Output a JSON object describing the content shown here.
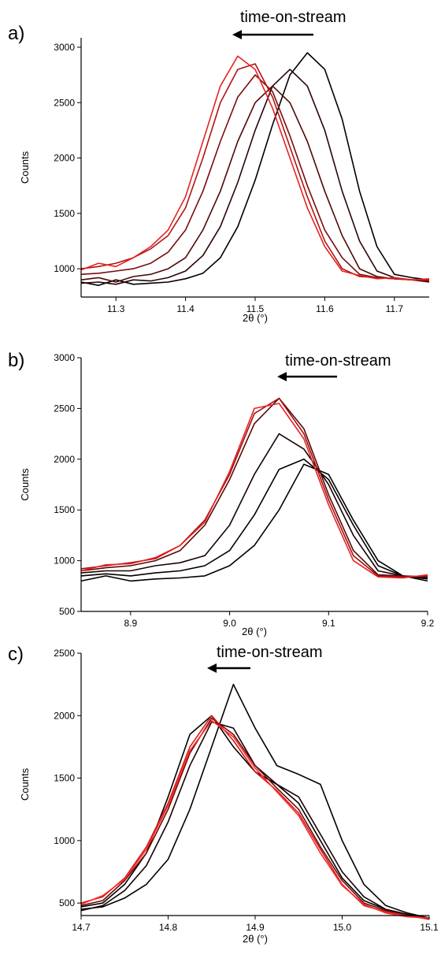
{
  "chart_data": [
    {
      "type": "line",
      "panel": "a)",
      "annotation": "time-on-stream",
      "xlabel": "2θ (°)",
      "ylabel": "Counts",
      "x": [
        11.25,
        11.275,
        11.3,
        11.325,
        11.35,
        11.375,
        11.4,
        11.425,
        11.45,
        11.475,
        11.5,
        11.525,
        11.55,
        11.575,
        11.6,
        11.625,
        11.65,
        11.675,
        11.7,
        11.725,
        11.75
      ],
      "xlim": [
        11.25,
        11.75
      ],
      "xticks": [
        11.3,
        11.4,
        11.5,
        11.6,
        11.7
      ],
      "ylim": [
        745,
        3085
      ],
      "yticks": [
        1000,
        1500,
        2000,
        2500,
        3000
      ],
      "series": [
        {
          "color": "#000000",
          "values": [
            880,
            850,
            900,
            860,
            870,
            880,
            910,
            960,
            1100,
            1380,
            1800,
            2300,
            2750,
            2950,
            2800,
            2350,
            1700,
            1200,
            950,
            920,
            900
          ]
        },
        {
          "color": "#2a0404",
          "values": [
            870,
            880,
            860,
            900,
            890,
            920,
            980,
            1120,
            1380,
            1780,
            2250,
            2650,
            2800,
            2650,
            2250,
            1700,
            1250,
            980,
            920,
            900,
            890
          ]
        },
        {
          "color": "#500808",
          "values": [
            900,
            920,
            880,
            930,
            950,
            1000,
            1100,
            1350,
            1700,
            2150,
            2500,
            2650,
            2500,
            2150,
            1700,
            1300,
            1000,
            930,
            910,
            900,
            880
          ]
        },
        {
          "color": "#7a0c0c",
          "values": [
            950,
            960,
            980,
            1000,
            1050,
            1150,
            1350,
            1700,
            2150,
            2550,
            2750,
            2600,
            2200,
            1750,
            1350,
            1100,
            950,
            920,
            910,
            900,
            890
          ]
        },
        {
          "color": "#b01414",
          "values": [
            1000,
            1020,
            1050,
            1100,
            1180,
            1300,
            1550,
            2000,
            2500,
            2800,
            2850,
            2550,
            2100,
            1650,
            1250,
            1000,
            930,
            920,
            910,
            900,
            900
          ]
        },
        {
          "color": "#e82222",
          "values": [
            990,
            1050,
            1020,
            1100,
            1200,
            1350,
            1650,
            2150,
            2650,
            2920,
            2800,
            2450,
            2000,
            1550,
            1200,
            980,
            940,
            910,
            920,
            900,
            910
          ]
        }
      ]
    },
    {
      "type": "line",
      "panel": "b)",
      "annotation": "time-on-stream",
      "xlabel": "2θ (°)",
      "ylabel": "Counts",
      "x": [
        8.85,
        8.875,
        8.9,
        8.925,
        8.95,
        8.975,
        9.0,
        9.025,
        9.05,
        9.075,
        9.1,
        9.125,
        9.15,
        9.175,
        9.2
      ],
      "xlim": [
        8.85,
        9.2
      ],
      "xticks": [
        8.9,
        {
          "value": 9,
          "label": "9.0"
        },
        9.1,
        9.2
      ],
      "ylim": [
        500,
        3000
      ],
      "yticks": [
        500,
        1000,
        1500,
        2000,
        2500,
        3000
      ],
      "series": [
        {
          "color": "#000000",
          "values": [
            800,
            850,
            800,
            820,
            830,
            850,
            950,
            1150,
            1500,
            1950,
            1850,
            1400,
            1000,
            850,
            800
          ]
        },
        {
          "color": "#000000",
          "values": [
            850,
            870,
            850,
            880,
            900,
            950,
            1100,
            1450,
            1900,
            2000,
            1800,
            1350,
            950,
            850,
            820
          ]
        },
        {
          "color": "#1a0202",
          "values": [
            880,
            900,
            900,
            950,
            980,
            1050,
            1350,
            1850,
            2250,
            2100,
            1750,
            1250,
            900,
            850,
            830
          ]
        },
        {
          "color": "#5a0808",
          "values": [
            900,
            930,
            950,
            1000,
            1100,
            1350,
            1800,
            2350,
            2600,
            2300,
            1650,
            1100,
            860,
            850,
            840
          ]
        },
        {
          "color": "#a01010",
          "values": [
            920,
            950,
            980,
            1020,
            1150,
            1400,
            1850,
            2450,
            2600,
            2250,
            1600,
            1050,
            850,
            840,
            850
          ]
        },
        {
          "color": "#e82222",
          "values": [
            900,
            960,
            970,
            1030,
            1150,
            1380,
            1880,
            2500,
            2550,
            2200,
            1550,
            1000,
            840,
            830,
            860
          ]
        }
      ]
    },
    {
      "type": "line",
      "panel": "c)",
      "annotation": "time-on-stream",
      "xlabel": "2θ (°)",
      "ylabel": "Counts",
      "x": [
        14.7,
        14.725,
        14.75,
        14.775,
        14.8,
        14.825,
        14.85,
        14.875,
        14.9,
        14.925,
        14.95,
        14.975,
        15.0,
        15.025,
        15.05,
        15.075,
        15.1
      ],
      "xlim": [
        14.7,
        15.1
      ],
      "xticks": [
        14.7,
        14.8,
        14.9,
        {
          "value": 15,
          "label": "15.0"
        },
        15.1
      ],
      "ylim": [
        400,
        2500
      ],
      "yticks": [
        500,
        1000,
        1500,
        2000,
        2500
      ],
      "series": [
        {
          "color": "#000000",
          "values": [
            450,
            470,
            540,
            650,
            850,
            1250,
            1750,
            2250,
            1900,
            1600,
            1530,
            1450,
            1000,
            650,
            480,
            420,
            380
          ]
        },
        {
          "color": "#000000",
          "values": [
            470,
            500,
            650,
            900,
            1350,
            1850,
            2000,
            1750,
            1550,
            1450,
            1300,
            1000,
            700,
            520,
            450,
            400,
            380
          ]
        },
        {
          "color": "#1a0202",
          "values": [
            440,
            480,
            600,
            800,
            1150,
            1600,
            1950,
            1900,
            1600,
            1450,
            1350,
            1050,
            750,
            550,
            450,
            410,
            380
          ]
        },
        {
          "color": "#700a0a",
          "values": [
            480,
            520,
            680,
            900,
            1250,
            1700,
            1980,
            1850,
            1600,
            1420,
            1250,
            950,
            680,
            500,
            440,
            400,
            380
          ]
        },
        {
          "color": "#d01c1c",
          "values": [
            500,
            550,
            700,
            950,
            1300,
            1750,
            2000,
            1800,
            1550,
            1400,
            1220,
            930,
            650,
            480,
            430,
            400,
            370
          ]
        },
        {
          "color": "#ff2a2a",
          "values": [
            490,
            560,
            690,
            930,
            1280,
            1720,
            1960,
            1830,
            1580,
            1390,
            1200,
            900,
            640,
            490,
            420,
            390,
            380
          ]
        }
      ]
    }
  ]
}
